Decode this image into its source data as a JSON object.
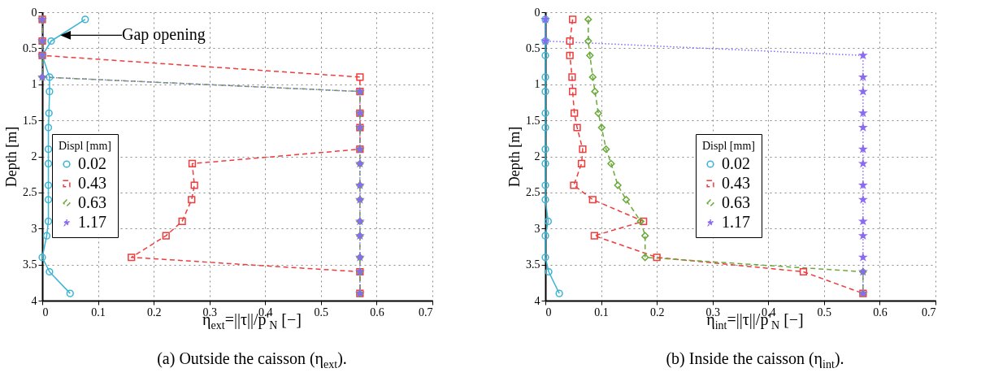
{
  "chart_data": [
    {
      "type": "line",
      "title": "(a) Outside the caisson (η$_{ext}$).",
      "xlabel": "η$_{ext}$=||τ||/p'$_{N}$ [−]",
      "ylabel": "Depth [m]",
      "legend_title": "Displ [mm]",
      "legend": "left",
      "grid": true,
      "xlim": [
        0,
        0.7
      ],
      "xticks": [
        0,
        0.1,
        0.2,
        0.3,
        0.4,
        0.5,
        0.6,
        0.7
      ],
      "ylim": [
        4,
        0
      ],
      "yticks": [
        0,
        0.5,
        1,
        1.5,
        2,
        2.5,
        3,
        3.5,
        4
      ],
      "annotations": [
        {
          "text": "Gap opening",
          "x": 0.035,
          "y": 0.32
        }
      ],
      "series": [
        {
          "name": "0.02",
          "color": "#3cb4d4",
          "marker": "circle",
          "line_style": "solid",
          "x": [
            0.077,
            0.016,
            0.0,
            0.013,
            0.013,
            0.012,
            0.011,
            0.011,
            0.011,
            0.011,
            0.011,
            0.011,
            0.008,
            0.0,
            0.013,
            0.05
          ],
          "values": [
            0.1,
            0.4,
            0.6,
            0.9,
            1.1,
            1.4,
            1.6,
            1.9,
            2.1,
            2.4,
            2.6,
            2.9,
            3.1,
            3.4,
            3.6,
            3.9
          ]
        },
        {
          "name": "0.43",
          "color": "#f03c3c",
          "marker": "square",
          "line_style": "dashed",
          "x": [
            0,
            0,
            0,
            0.57,
            0.57,
            0.57,
            0.57,
            0.57,
            0.269,
            0.273,
            0.268,
            0.251,
            0.222,
            0.16,
            0.57,
            0.57
          ],
          "values": [
            0.1,
            0.4,
            0.6,
            0.9,
            1.1,
            1.4,
            1.6,
            1.9,
            2.1,
            2.4,
            2.6,
            2.9,
            3.1,
            3.4,
            3.6,
            3.9
          ]
        },
        {
          "name": "0.63",
          "color": "#6aaa3a",
          "marker": "diamond",
          "line_style": "dashed",
          "x": [
            0,
            0,
            0,
            0,
            0.57,
            0.57,
            0.57,
            0.57,
            0.57,
            0.57,
            0.57,
            0.57,
            0.57,
            0.57,
            0.57,
            0.57
          ],
          "values": [
            0.1,
            0.4,
            0.6,
            0.9,
            1.1,
            1.4,
            1.6,
            1.9,
            2.1,
            2.4,
            2.6,
            2.9,
            3.1,
            3.4,
            3.6,
            3.9
          ]
        },
        {
          "name": "1.17",
          "color": "#8a6af0",
          "marker": "star",
          "line_style": "dotted",
          "x": [
            0,
            0,
            0,
            0,
            0.57,
            0.57,
            0.57,
            0.57,
            0.57,
            0.57,
            0.57,
            0.57,
            0.57,
            0.57,
            0.57,
            0.57
          ],
          "values": [
            0.1,
            0.4,
            0.6,
            0.9,
            1.1,
            1.4,
            1.6,
            1.9,
            2.1,
            2.4,
            2.6,
            2.9,
            3.1,
            3.4,
            3.6,
            3.9
          ]
        }
      ]
    },
    {
      "type": "line",
      "title": "(b) Inside the caisson (η$_{int}$).",
      "xlabel": "η$_{int}$=||τ||/p'$_{N}$ [−]",
      "ylabel": "Depth [m]",
      "legend_title": "Displ [mm]",
      "legend": "center",
      "grid": true,
      "xlim": [
        0,
        0.7
      ],
      "xticks": [
        0,
        0.1,
        0.2,
        0.3,
        0.4,
        0.5,
        0.6,
        0.7
      ],
      "ylim": [
        4,
        0
      ],
      "yticks": [
        0,
        0.5,
        1,
        1.5,
        2,
        2.5,
        3,
        3.5,
        4
      ],
      "series": [
        {
          "name": "0.02",
          "color": "#3cb4d4",
          "marker": "circle",
          "line_style": "solid",
          "x": [
            0,
            0,
            0,
            0,
            0,
            0,
            0,
            0,
            0,
            0,
            0,
            0.005,
            0,
            0,
            0.006,
            0.025
          ],
          "values": [
            0.1,
            0.4,
            0.6,
            0.9,
            1.1,
            1.4,
            1.6,
            1.9,
            2.1,
            2.4,
            2.6,
            2.9,
            3.1,
            3.4,
            3.6,
            3.9
          ]
        },
        {
          "name": "0.43",
          "color": "#f03c3c",
          "marker": "square",
          "line_style": "dashed",
          "x": [
            0.049,
            0.044,
            0.044,
            0.048,
            0.049,
            0.052,
            0.057,
            0.067,
            0.065,
            0.051,
            0.085,
            0.176,
            0.088,
            0.2,
            0.463,
            0.57
          ],
          "values": [
            0.1,
            0.4,
            0.6,
            0.9,
            1.1,
            1.4,
            1.6,
            1.9,
            2.1,
            2.4,
            2.6,
            2.9,
            3.1,
            3.4,
            3.6,
            3.9
          ]
        },
        {
          "name": "0.63",
          "color": "#6aaa3a",
          "marker": "diamond",
          "line_style": "dashed",
          "x": [
            0.077,
            0.077,
            0.08,
            0.085,
            0.089,
            0.095,
            0.101,
            0.109,
            0.118,
            0.13,
            0.145,
            0.171,
            0.179,
            0.179,
            0.57,
            0.57
          ],
          "values": [
            0.1,
            0.4,
            0.6,
            0.9,
            1.1,
            1.4,
            1.6,
            1.9,
            2.1,
            2.4,
            2.6,
            2.9,
            3.1,
            3.4,
            3.6,
            3.9
          ]
        },
        {
          "name": "1.17",
          "color": "#8a6af0",
          "marker": "star",
          "line_style": "dotted",
          "x": [
            0,
            0,
            0.57,
            0.57,
            0.57,
            0.57,
            0.57,
            0.57,
            0.57,
            0.57,
            0.57,
            0.57,
            0.57,
            0.57,
            0.57,
            0.57
          ],
          "values": [
            0.1,
            0.4,
            0.6,
            0.9,
            1.1,
            1.4,
            1.6,
            1.9,
            2.1,
            2.4,
            2.6,
            2.9,
            3.1,
            3.4,
            3.6,
            3.9
          ]
        }
      ]
    }
  ]
}
